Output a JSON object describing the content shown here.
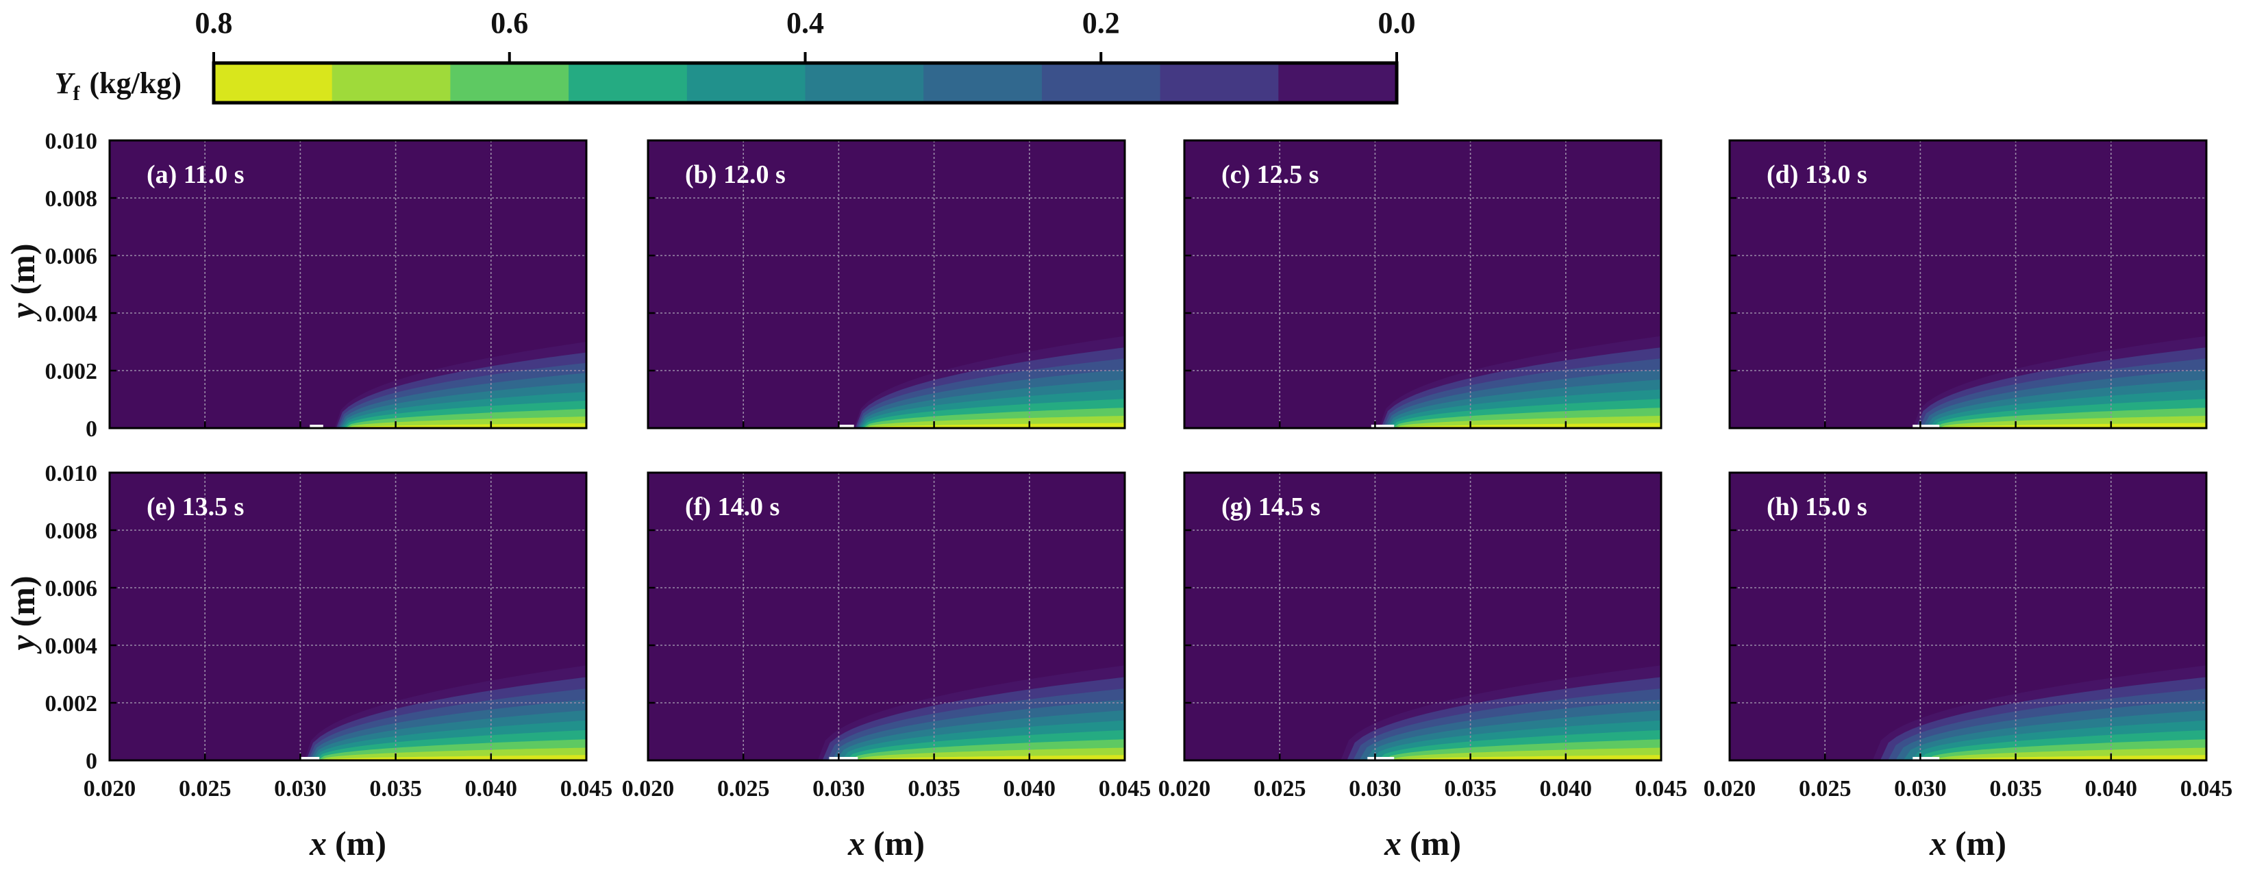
{
  "colors": {
    "levels": [
      "#440154",
      "#471466",
      "#443983",
      "#3b518b",
      "#31688e",
      "#287d8e",
      "#21918c",
      "#25ab82",
      "#5ec962",
      "#9fda3a",
      "#d9e61c"
    ],
    "background": "#440c5c",
    "grid": "#9a8aa8"
  },
  "colorbar": {
    "label_symbol": "Y",
    "label_subscript": "f",
    "label_unit": "(kg/kg)",
    "ticks": [
      "0.8",
      "0.6",
      "0.4",
      "0.2",
      "0.0"
    ],
    "range": [
      0.8,
      0.0
    ],
    "num_bins": 10
  },
  "chart_data": {
    "type": "contour",
    "title": "",
    "xlabel_symbol": "x",
    "xlabel_unit": "(m)",
    "ylabel_symbol": "y",
    "ylabel_unit": "(m)",
    "xlim": [
      0.02,
      0.045
    ],
    "ylim": [
      0,
      0.01
    ],
    "xticks": [
      "0.020",
      "0.025",
      "0.030",
      "0.035",
      "0.040",
      "0.045"
    ],
    "yticks": [
      "0",
      "0.002",
      "0.004",
      "0.006",
      "0.008",
      "0.010"
    ],
    "grid": true,
    "value_name": "Yf (kg/kg)",
    "panels": [
      {
        "label": "(a) 11.0 s",
        "time_s": 11.0,
        "front_x": 0.0318,
        "edge_y": 0.003,
        "core_x": 0.0325,
        "gap_x": [
          0.0305,
          0.0312
        ]
      },
      {
        "label": "(b) 12.0 s",
        "time_s": 12.0,
        "front_x": 0.0308,
        "edge_y": 0.0032,
        "core_x": 0.0314,
        "gap_x": [
          0.03,
          0.0308
        ]
      },
      {
        "label": "(c) 12.5 s",
        "time_s": 12.5,
        "front_x": 0.0302,
        "edge_y": 0.0032,
        "core_x": 0.0311,
        "gap_x": [
          0.0298,
          0.031
        ]
      },
      {
        "label": "(d) 13.0 s",
        "time_s": 13.0,
        "front_x": 0.0296,
        "edge_y": 0.0032,
        "core_x": 0.0311,
        "gap_x": [
          0.0296,
          0.031
        ]
      },
      {
        "label": "(e) 13.5 s",
        "time_s": 13.5,
        "front_x": 0.0302,
        "edge_y": 0.0033,
        "core_x": 0.0311,
        "gap_x": [
          0.03,
          0.031
        ]
      },
      {
        "label": "(f) 14.0 s",
        "time_s": 14.0,
        "front_x": 0.0289,
        "edge_y": 0.0033,
        "core_x": 0.0311,
        "gap_x": [
          0.0295,
          0.031
        ]
      },
      {
        "label": "(g) 14.5 s",
        "time_s": 14.5,
        "front_x": 0.0282,
        "edge_y": 0.0033,
        "core_x": 0.0311,
        "gap_x": [
          0.0296,
          0.031
        ]
      },
      {
        "label": "(h) 15.0 s",
        "time_s": 15.0,
        "front_x": 0.0275,
        "edge_y": 0.0033,
        "core_x": 0.0311,
        "gap_x": [
          0.0296,
          0.031
        ]
      }
    ]
  }
}
